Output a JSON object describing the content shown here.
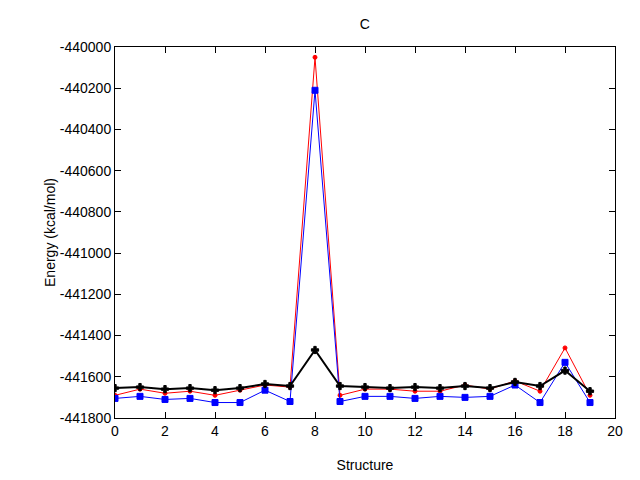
{
  "chart_data": {
    "type": "line",
    "title": "C",
    "x_label": "Structure",
    "y_label": "Energy (kcal/mol)",
    "x": [
      0,
      1,
      2,
      3,
      4,
      5,
      6,
      7,
      8,
      9,
      10,
      11,
      12,
      13,
      14,
      15,
      16,
      17,
      18,
      19
    ],
    "series": [
      {
        "color": "#ff0000",
        "marker": "circle",
        "values": [
          -441690,
          -441660,
          -441680,
          -441670,
          -441690,
          -441665,
          -441640,
          -441650,
          -440050,
          -441690,
          -441660,
          -441660,
          -441670,
          -441670,
          -441640,
          -441660,
          -441620,
          -441670,
          -441460,
          -441690
        ]
      },
      {
        "color": "#0000ff",
        "marker": "square",
        "values": [
          -441705,
          -441695,
          -441710,
          -441705,
          -441725,
          -441725,
          -441665,
          -441720,
          -440210,
          -441720,
          -441695,
          -441695,
          -441705,
          -441695,
          -441700,
          -441695,
          -441640,
          -441725,
          -441530,
          -441725
        ]
      },
      {
        "color": "#000000",
        "marker": "cross",
        "values": [
          -441655,
          -441650,
          -441660,
          -441655,
          -441665,
          -441655,
          -441635,
          -441645,
          -441470,
          -441645,
          -441650,
          -441655,
          -441650,
          -441655,
          -441645,
          -441655,
          -441625,
          -441645,
          -441570,
          -441670
        ]
      }
    ],
    "xlim": [
      0,
      20
    ],
    "xticks": [
      0,
      2,
      4,
      6,
      8,
      10,
      12,
      14,
      16,
      18,
      20
    ],
    "ylim": [
      -441800,
      -440000
    ],
    "yticks": [
      -441800,
      -441600,
      -441400,
      -441200,
      -441000,
      -440800,
      -440600,
      -440400,
      -440200,
      -440000
    ],
    "grid": false
  }
}
